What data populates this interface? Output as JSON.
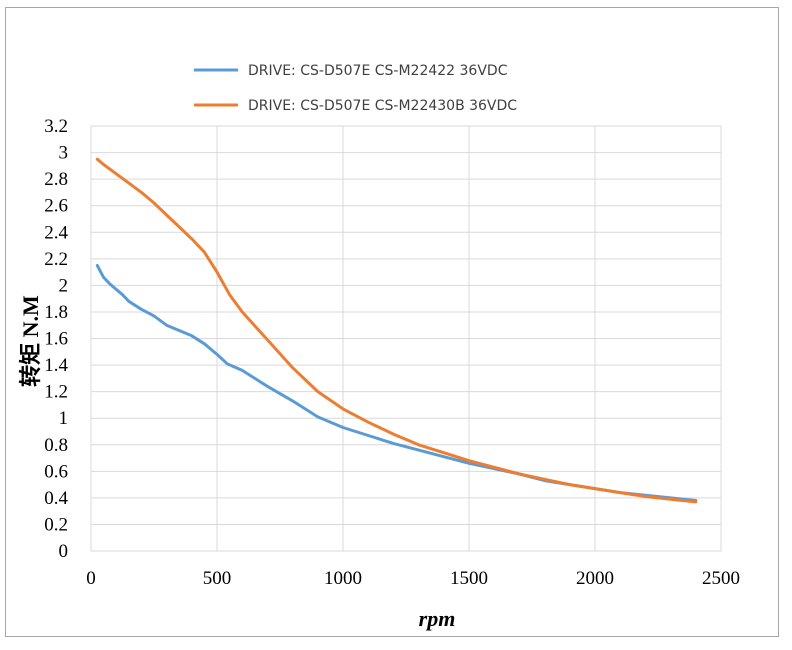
{
  "chart_data": {
    "type": "line",
    "title": "",
    "xlabel": "rpm",
    "ylabel": "转矩 N.M",
    "xlim": [
      0,
      2500
    ],
    "ylim": [
      0,
      3.2
    ],
    "x_ticks": [
      "0",
      "500",
      "1000",
      "1500",
      "2000",
      "2500"
    ],
    "y_ticks": [
      "0",
      "0.2",
      "0.4",
      "0.6",
      "0.8",
      "1",
      "1.2",
      "1.4",
      "1.6",
      "1.8",
      "2",
      "2.2",
      "2.4",
      "2.6",
      "2.8",
      "3",
      "3.2"
    ],
    "grid": true,
    "legend_position": "top",
    "series": [
      {
        "name": "DRIVE: CS-D507E  CS-M22422  36VDC",
        "color": "#5b9bd5",
        "x": [
          25,
          50,
          75,
          100,
          125,
          150,
          200,
          250,
          300,
          350,
          400,
          450,
          500,
          540,
          600,
          700,
          800,
          900,
          1000,
          1100,
          1200,
          1300,
          1400,
          1500,
          1600,
          1700,
          1800,
          1900,
          2000,
          2100,
          2200,
          2300,
          2400
        ],
        "y": [
          2.15,
          2.06,
          2.01,
          1.97,
          1.93,
          1.88,
          1.82,
          1.77,
          1.7,
          1.66,
          1.62,
          1.56,
          1.48,
          1.41,
          1.36,
          1.24,
          1.13,
          1.01,
          0.93,
          0.87,
          0.81,
          0.76,
          0.71,
          0.66,
          0.62,
          0.58,
          0.53,
          0.5,
          0.47,
          0.44,
          0.42,
          0.4,
          0.38
        ]
      },
      {
        "name": "DRIVE: CS-D507E CS-M22430B  36VDC",
        "color": "#ed7d31",
        "x": [
          25,
          50,
          100,
          150,
          200,
          250,
          300,
          350,
          400,
          450,
          500,
          550,
          600,
          700,
          800,
          900,
          1000,
          1100,
          1200,
          1300,
          1400,
          1500,
          1600,
          1700,
          1800,
          1900,
          2000,
          2100,
          2200,
          2300,
          2400
        ],
        "y": [
          2.95,
          2.91,
          2.84,
          2.77,
          2.7,
          2.62,
          2.53,
          2.44,
          2.35,
          2.25,
          2.1,
          1.93,
          1.8,
          1.59,
          1.38,
          1.2,
          1.07,
          0.97,
          0.88,
          0.8,
          0.74,
          0.68,
          0.63,
          0.58,
          0.54,
          0.5,
          0.47,
          0.44,
          0.41,
          0.39,
          0.37
        ]
      }
    ]
  }
}
